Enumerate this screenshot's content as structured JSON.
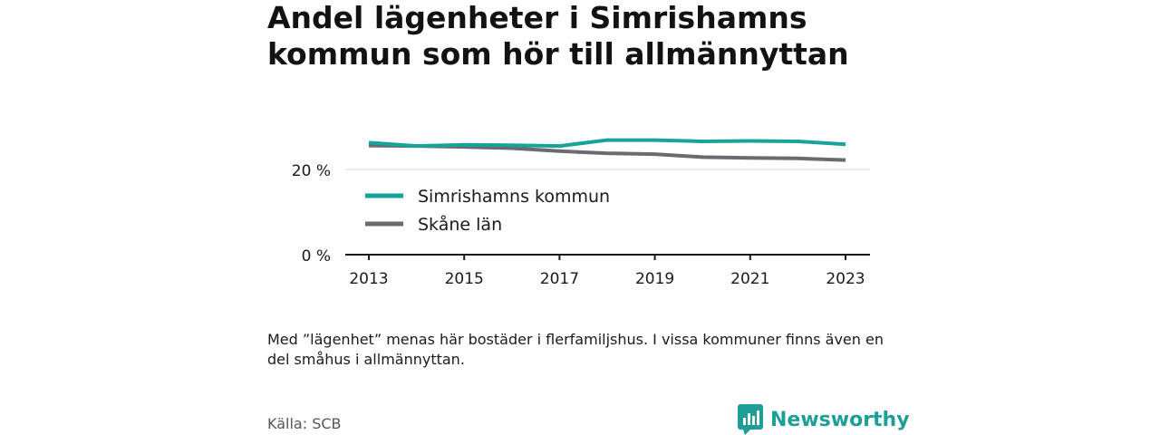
{
  "title": "Andel lägenheter i Simrishamns kommun som hör till allmännyttan",
  "note": "Med ”lägenhet” menas här bostäder i flerfamiljshus. I vissa kommuner finns även en del småhus i allmännyttan.",
  "source": "Källa: SCB",
  "brand": {
    "name": "Newsworthy",
    "icon": "newsworthy-logo-icon"
  },
  "colors": {
    "simrishamn": "#16a39a",
    "skane": "#6b6a72",
    "grid": "#d9d9d9",
    "axis": "#1a1a1a"
  },
  "chart_data": {
    "type": "line",
    "x": [
      2013,
      2014,
      2015,
      2016,
      2017,
      2018,
      2019,
      2020,
      2021,
      2022,
      2023
    ],
    "x_tick_labels": [
      "2013",
      "2015",
      "2017",
      "2019",
      "2021",
      "2023"
    ],
    "y_tick_labels": [
      "0 %",
      "20 %"
    ],
    "ylim": [
      0,
      30
    ],
    "grid": true,
    "legend_position": "inside-left",
    "series": [
      {
        "name": "Simrishamns kommun",
        "values": [
          26.3,
          25.5,
          25.8,
          25.7,
          25.5,
          26.9,
          26.9,
          26.6,
          26.7,
          26.6,
          25.9
        ]
      },
      {
        "name": "Skåne län",
        "values": [
          25.6,
          25.5,
          25.3,
          25.0,
          24.3,
          23.8,
          23.6,
          22.9,
          22.7,
          22.6,
          22.2
        ]
      }
    ]
  }
}
